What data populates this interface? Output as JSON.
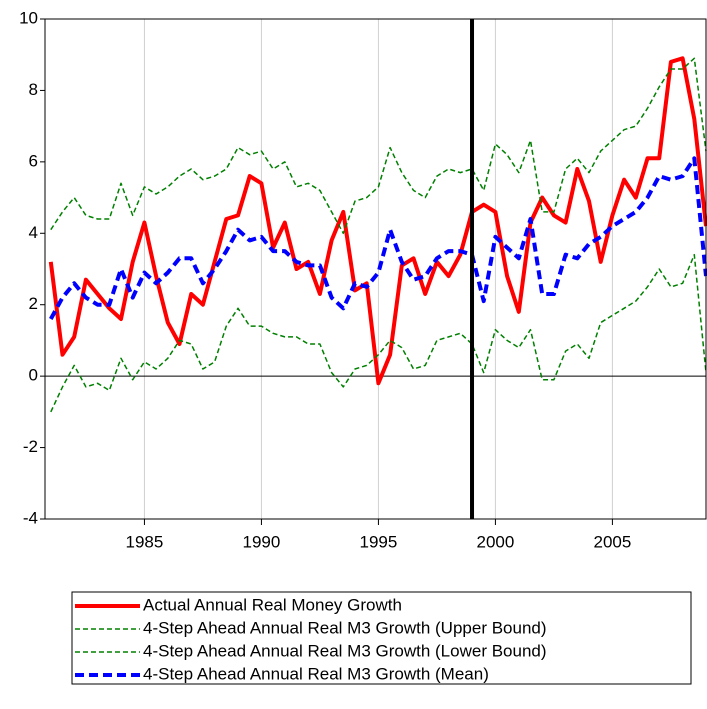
{
  "chart_data": {
    "type": "line",
    "x": [
      1981,
      1981.5,
      1982,
      1982.5,
      1983,
      1983.5,
      1984,
      1984.5,
      1985,
      1985.5,
      1986,
      1986.5,
      1987,
      1987.5,
      1988,
      1988.5,
      1989,
      1989.5,
      1990,
      1990.5,
      1991,
      1991.5,
      1992,
      1992.5,
      1993,
      1993.5,
      1994,
      1994.5,
      1995,
      1995.5,
      1996,
      1996.5,
      1997,
      1997.5,
      1998,
      1998.5,
      1999,
      1999.5,
      2000,
      2000.5,
      2001,
      2001.5,
      2002,
      2002.5,
      2003,
      2003.5,
      2004,
      2004.5,
      2005,
      2005.5,
      2006,
      2006.5,
      2007,
      2007.5,
      2008,
      2008.5,
      2009
    ],
    "series": [
      {
        "name": "Actual Annual Real Money Growth",
        "color": "#ff0000",
        "style": "thick-solid",
        "values": [
          3.2,
          0.6,
          1.1,
          2.7,
          2.3,
          1.9,
          1.6,
          3.2,
          4.3,
          2.8,
          1.5,
          0.9,
          2.3,
          2.0,
          3.2,
          4.4,
          4.5,
          5.6,
          5.4,
          3.6,
          4.3,
          3.0,
          3.2,
          2.3,
          3.8,
          4.6,
          2.4,
          2.6,
          -0.2,
          0.6,
          3.1,
          3.3,
          2.3,
          3.2,
          2.8,
          3.4,
          4.6,
          4.8,
          4.6,
          2.8,
          1.8,
          4.3,
          5.0,
          4.5,
          4.3,
          5.8,
          4.9,
          3.2,
          4.5,
          5.5,
          5.0,
          6.1,
          6.1,
          8.8,
          8.9,
          7.2,
          4.2
        ]
      },
      {
        "name": "4-Step Ahead Annual Real M3 Growth (Upper Bound)",
        "color": "#008000",
        "style": "thin-dashed",
        "values": [
          4.1,
          4.6,
          5.0,
          4.5,
          4.4,
          4.4,
          5.4,
          4.5,
          5.3,
          5.1,
          5.3,
          5.6,
          5.8,
          5.5,
          5.6,
          5.8,
          6.4,
          6.2,
          6.3,
          5.8,
          6.0,
          5.3,
          5.4,
          5.2,
          4.6,
          4.0,
          4.9,
          5.0,
          5.3,
          6.4,
          5.7,
          5.2,
          5.0,
          5.6,
          5.8,
          5.7,
          5.8,
          5.2,
          6.5,
          6.2,
          5.7,
          6.6,
          4.6,
          4.6,
          5.8,
          6.1,
          5.7,
          6.3,
          6.6,
          6.9,
          7.0,
          7.5,
          8.1,
          8.6,
          8.6,
          8.9,
          6.3
        ]
      },
      {
        "name": "4-Step Ahead Annual Real M3 Growth (Lower Bound)",
        "color": "#008000",
        "style": "thin-dashed",
        "values": [
          -1.0,
          -0.3,
          0.3,
          -0.3,
          -0.2,
          -0.4,
          0.5,
          -0.1,
          0.4,
          0.2,
          0.5,
          1.0,
          0.9,
          0.2,
          0.4,
          1.4,
          1.9,
          1.4,
          1.4,
          1.2,
          1.1,
          1.1,
          0.9,
          0.9,
          0.1,
          -0.3,
          0.2,
          0.3,
          0.6,
          1.0,
          0.8,
          0.2,
          0.3,
          1.0,
          1.1,
          1.2,
          0.9,
          0.1,
          1.3,
          1.0,
          0.8,
          1.3,
          -0.1,
          -0.1,
          0.7,
          0.9,
          0.5,
          1.5,
          1.7,
          1.9,
          2.1,
          2.5,
          3.0,
          2.5,
          2.6,
          3.4,
          0.1
        ]
      },
      {
        "name": "4-Step Ahead Annual Real M3 Growth (Mean)",
        "color": "#0000ff",
        "style": "thick-dashed",
        "values": [
          1.6,
          2.2,
          2.6,
          2.2,
          2.0,
          2.0,
          3.0,
          2.2,
          2.9,
          2.6,
          2.9,
          3.3,
          3.3,
          2.6,
          3.0,
          3.5,
          4.1,
          3.8,
          3.9,
          3.5,
          3.5,
          3.2,
          3.1,
          3.1,
          2.2,
          1.9,
          2.6,
          2.5,
          2.9,
          4.1,
          3.2,
          2.7,
          2.8,
          3.3,
          3.5,
          3.5,
          3.4,
          2.1,
          3.9,
          3.6,
          3.3,
          4.4,
          2.3,
          2.3,
          3.4,
          3.3,
          3.7,
          3.9,
          4.2,
          4.4,
          4.6,
          5.0,
          5.6,
          5.5,
          5.6,
          6.1,
          2.8
        ]
      }
    ],
    "xlim": [
      1980.75,
      2009
    ],
    "xticks": [
      1985,
      1990,
      1995,
      2000,
      2005
    ],
    "ylim": [
      -4,
      10
    ],
    "yticks": [
      -4,
      -2,
      0,
      2,
      4,
      6,
      8,
      10
    ],
    "grid": "x",
    "zero_line": true,
    "vline": 1999,
    "legend": "bottom"
  }
}
